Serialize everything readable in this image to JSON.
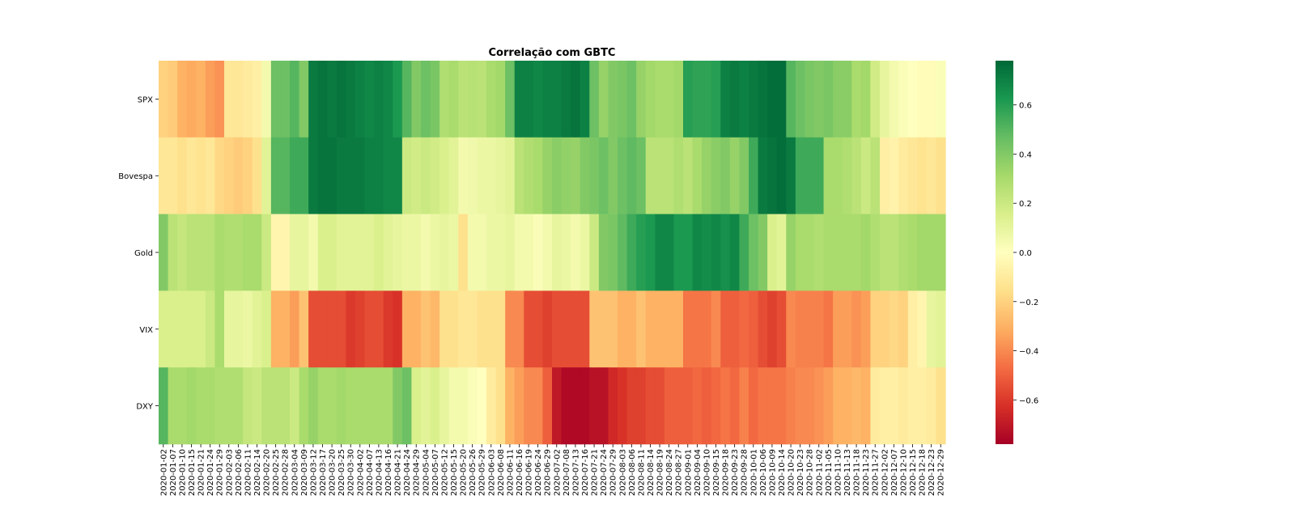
{
  "chart_data": {
    "type": "heatmap",
    "title": "Correlação com GBTC",
    "xlabel": "",
    "ylabel": "",
    "rows": [
      "SPX",
      "Bovespa",
      "Gold",
      "VIX",
      "DXY"
    ],
    "x_tick_labels": [
      "2020-01-02",
      "2020-01-07",
      "2020-01-10",
      "2020-01-15",
      "2020-01-21",
      "2020-01-24",
      "2020-01-29",
      "2020-02-03",
      "2020-02-06",
      "2020-02-11",
      "2020-02-14",
      "2020-02-20",
      "2020-02-25",
      "2020-02-28",
      "2020-03-04",
      "2020-03-09",
      "2020-03-12",
      "2020-03-17",
      "2020-03-20",
      "2020-03-25",
      "2020-03-30",
      "2020-04-02",
      "2020-04-07",
      "2020-04-13",
      "2020-04-16",
      "2020-04-21",
      "2020-04-24",
      "2020-04-29",
      "2020-05-04",
      "2020-05-07",
      "2020-05-12",
      "2020-05-15",
      "2020-05-20",
      "2020-05-26",
      "2020-05-29",
      "2020-06-03",
      "2020-06-08",
      "2020-06-11",
      "2020-06-16",
      "2020-06-19",
      "2020-06-24",
      "2020-06-29",
      "2020-07-02",
      "2020-07-08",
      "2020-07-13",
      "2020-07-16",
      "2020-07-21",
      "2020-07-24",
      "2020-07-29",
      "2020-08-03",
      "2020-08-06",
      "2020-08-11",
      "2020-08-14",
      "2020-08-19",
      "2020-08-24",
      "2020-08-27",
      "2020-09-01",
      "2020-09-04",
      "2020-09-10",
      "2020-09-15",
      "2020-09-18",
      "2020-09-23",
      "2020-09-28",
      "2020-10-01",
      "2020-10-06",
      "2020-10-09",
      "2020-10-14",
      "2020-10-20",
      "2020-10-23",
      "2020-10-28",
      "2020-11-02",
      "2020-11-05",
      "2020-11-10",
      "2020-11-13",
      "2020-11-18",
      "2020-11-23",
      "2020-11-27",
      "2020-12-02",
      "2020-12-07",
      "2020-12-10",
      "2020-12-15",
      "2020-12-18",
      "2020-12-23",
      "2020-12-29"
    ],
    "values": [
      [
        -0.2,
        -0.22,
        -0.3,
        -0.32,
        -0.3,
        -0.35,
        -0.38,
        -0.12,
        -0.12,
        -0.1,
        -0.08,
        0.05,
        0.45,
        0.45,
        0.5,
        0.4,
        0.72,
        0.74,
        0.72,
        0.74,
        0.72,
        0.7,
        0.68,
        0.7,
        0.68,
        0.62,
        0.5,
        0.4,
        0.45,
        0.42,
        0.28,
        0.3,
        0.25,
        0.26,
        0.25,
        0.3,
        0.32,
        0.45,
        0.7,
        0.7,
        0.68,
        0.7,
        0.7,
        0.72,
        0.74,
        0.7,
        0.45,
        0.35,
        0.4,
        0.42,
        0.45,
        0.35,
        0.32,
        0.3,
        0.3,
        0.32,
        0.6,
        0.58,
        0.58,
        0.6,
        0.7,
        0.72,
        0.7,
        0.72,
        0.74,
        0.76,
        0.76,
        0.5,
        0.45,
        0.42,
        0.4,
        0.42,
        0.38,
        0.38,
        0.3,
        0.32,
        0.18,
        0.1,
        0.05,
        0.02,
        0.0,
        -0.02,
        -0.02,
        0.02
      ],
      [
        -0.12,
        -0.12,
        -0.15,
        -0.12,
        -0.14,
        -0.12,
        -0.18,
        -0.2,
        -0.22,
        -0.2,
        -0.15,
        0.12,
        0.5,
        0.5,
        0.55,
        0.55,
        0.72,
        0.74,
        0.74,
        0.72,
        0.72,
        0.72,
        0.7,
        0.7,
        0.68,
        0.68,
        0.2,
        0.18,
        0.2,
        0.18,
        0.15,
        0.12,
        0.05,
        0.06,
        0.08,
        0.08,
        0.1,
        0.12,
        0.25,
        0.28,
        0.3,
        0.35,
        0.38,
        0.36,
        0.35,
        0.4,
        0.42,
        0.45,
        0.4,
        0.45,
        0.48,
        0.45,
        0.25,
        0.25,
        0.25,
        0.28,
        0.25,
        0.3,
        0.35,
        0.38,
        0.4,
        0.35,
        0.4,
        0.55,
        0.72,
        0.74,
        0.76,
        0.72,
        0.55,
        0.55,
        0.55,
        0.3,
        0.3,
        0.28,
        0.25,
        0.2,
        0.25,
        -0.08,
        -0.06,
        -0.1,
        -0.12,
        -0.14,
        -0.12,
        -0.15
      ],
      [
        0.4,
        0.25,
        0.22,
        0.25,
        0.25,
        0.25,
        0.3,
        0.28,
        0.28,
        0.3,
        0.3,
        0.2,
        -0.05,
        -0.05,
        0.1,
        0.1,
        0.05,
        0.15,
        0.15,
        0.12,
        0.12,
        0.12,
        0.12,
        0.15,
        0.12,
        0.1,
        0.08,
        0.08,
        0.05,
        0.08,
        0.1,
        0.08,
        -0.15,
        0.05,
        0.05,
        0.08,
        0.08,
        0.1,
        0.05,
        0.05,
        0.02,
        0.05,
        0.1,
        0.08,
        0.05,
        0.08,
        0.2,
        0.4,
        0.42,
        0.48,
        0.55,
        0.6,
        0.62,
        0.68,
        0.68,
        0.62,
        0.62,
        0.68,
        0.66,
        0.68,
        0.65,
        0.68,
        0.55,
        0.45,
        0.4,
        0.15,
        0.12,
        0.35,
        0.3,
        0.3,
        0.28,
        0.3,
        0.3,
        0.3,
        0.3,
        0.32,
        0.28,
        0.25,
        0.25,
        0.28,
        0.3,
        0.32,
        0.32,
        0.32
      ],
      [
        0.15,
        0.15,
        0.15,
        0.15,
        0.15,
        0.2,
        0.3,
        0.1,
        0.1,
        0.08,
        0.12,
        0.15,
        -0.3,
        -0.3,
        -0.35,
        -0.25,
        -0.55,
        -0.55,
        -0.55,
        -0.55,
        -0.6,
        -0.58,
        -0.55,
        -0.55,
        -0.6,
        -0.62,
        -0.3,
        -0.3,
        -0.25,
        -0.28,
        -0.15,
        -0.15,
        -0.12,
        -0.12,
        -0.15,
        -0.15,
        -0.15,
        -0.4,
        -0.4,
        -0.55,
        -0.55,
        -0.58,
        -0.55,
        -0.55,
        -0.55,
        -0.55,
        -0.25,
        -0.25,
        -0.25,
        -0.3,
        -0.3,
        -0.25,
        -0.3,
        -0.3,
        -0.3,
        -0.3,
        -0.45,
        -0.45,
        -0.45,
        -0.4,
        -0.5,
        -0.5,
        -0.48,
        -0.5,
        -0.55,
        -0.58,
        -0.55,
        -0.4,
        -0.42,
        -0.42,
        -0.42,
        -0.45,
        -0.35,
        -0.35,
        -0.38,
        -0.35,
        -0.2,
        -0.2,
        -0.18,
        -0.2,
        -0.08,
        -0.05,
        0.1,
        0.12
      ],
      [
        0.5,
        0.3,
        0.3,
        0.32,
        0.3,
        0.3,
        0.28,
        0.28,
        0.28,
        0.22,
        0.2,
        0.25,
        0.25,
        0.25,
        0.2,
        0.3,
        0.35,
        0.3,
        0.3,
        0.32,
        0.3,
        0.3,
        0.3,
        0.3,
        0.3,
        0.4,
        0.45,
        0.15,
        0.12,
        0.15,
        0.1,
        0.05,
        0.05,
        0.02,
        0.0,
        -0.1,
        -0.15,
        -0.3,
        -0.35,
        -0.4,
        -0.4,
        -0.5,
        -0.7,
        -0.75,
        -0.75,
        -0.75,
        -0.72,
        -0.72,
        -0.65,
        -0.62,
        -0.58,
        -0.58,
        -0.55,
        -0.55,
        -0.5,
        -0.5,
        -0.5,
        -0.48,
        -0.5,
        -0.48,
        -0.45,
        -0.48,
        -0.42,
        -0.48,
        -0.45,
        -0.45,
        -0.45,
        -0.42,
        -0.4,
        -0.4,
        -0.38,
        -0.35,
        -0.3,
        -0.3,
        -0.28,
        -0.3,
        -0.1,
        -0.08,
        -0.08,
        -0.1,
        -0.08,
        -0.08,
        -0.1,
        -0.15
      ]
    ],
    "colorbar": {
      "min": -0.78,
      "max": 0.78,
      "ticks": [
        -0.6,
        -0.4,
        -0.2,
        0.0,
        0.2,
        0.4,
        0.6
      ],
      "tick_labels": [
        "−0.6",
        "−0.4",
        "−0.2",
        "0.0",
        "0.2",
        "0.4",
        "0.6"
      ],
      "colormap": "RdYlGn"
    },
    "grid": false,
    "legend": "colorbar-right"
  }
}
